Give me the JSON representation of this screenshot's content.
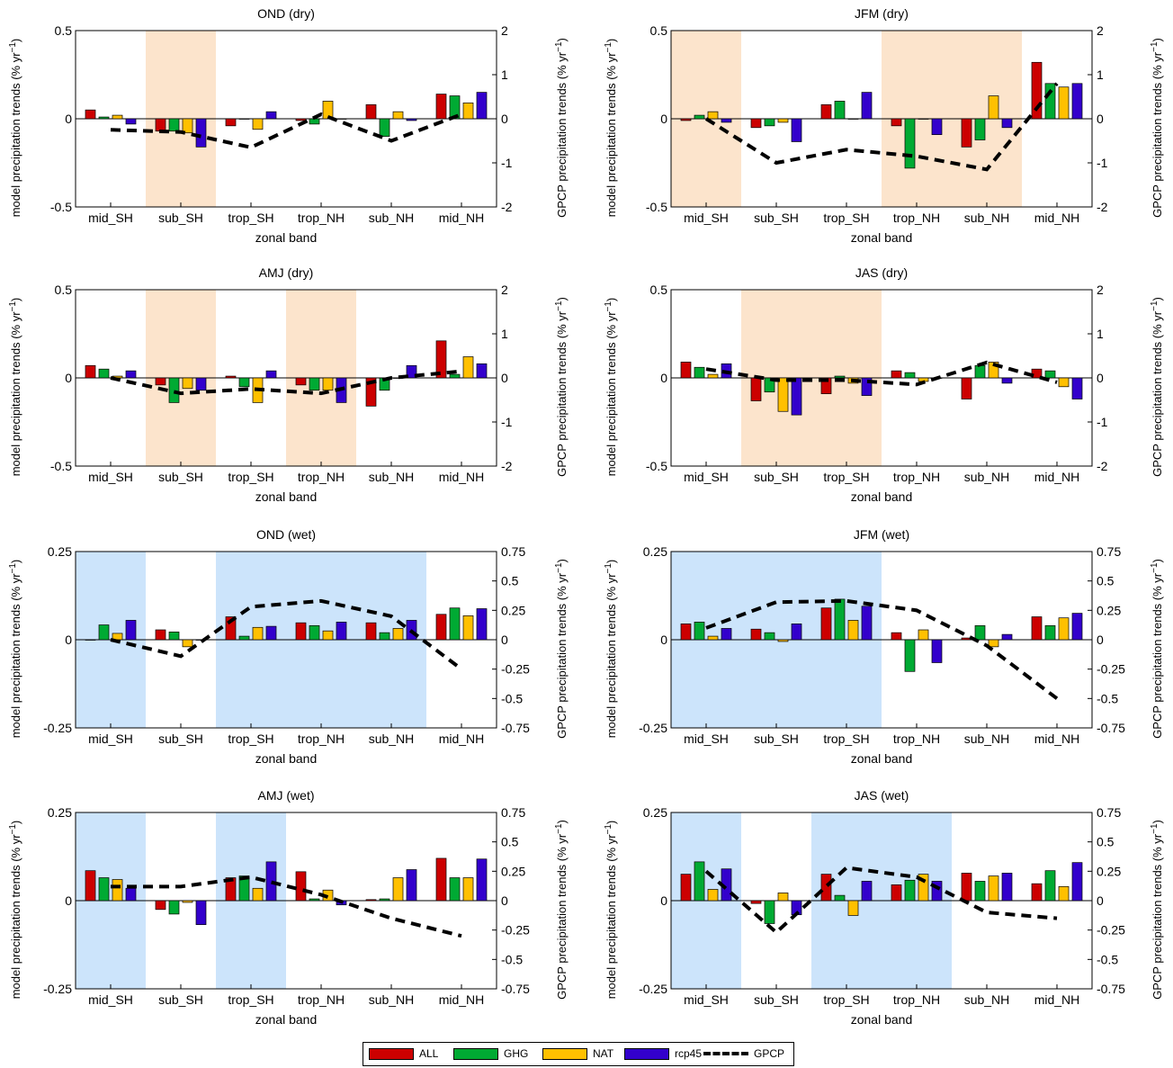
{
  "colors": {
    "ALL": "#cc0000",
    "GHG": "#00aa33",
    "NAT": "#ffc000",
    "rcp45": "#3300cc",
    "dry_shade": "#fce4cc",
    "wet_shade": "#cce4fb"
  },
  "legend": [
    {
      "label": "ALL",
      "color": "#cc0000",
      "kind": "bar"
    },
    {
      "label": "GHG",
      "color": "#00aa33",
      "kind": "bar"
    },
    {
      "label": "NAT",
      "color": "#ffc000",
      "kind": "bar"
    },
    {
      "label": "rcp45",
      "color": "#3300cc",
      "kind": "bar"
    },
    {
      "label": "GPCP",
      "color": "#000000",
      "kind": "dashed-line"
    }
  ],
  "chart_data": [
    {
      "type": "bar",
      "title": "OND (dry)",
      "categories": [
        "mid_SH",
        "sub_SH",
        "trop_SH",
        "trop_NH",
        "sub_NH",
        "mid_NH"
      ],
      "xlabel": "zonal band",
      "ylabel": "model precipitation trends (% yr⁻¹)",
      "y2label": "GPCP precipitation trends (% yr⁻¹)",
      "ylim": [
        -0.5,
        0.5
      ],
      "yticks": [
        "-0.5",
        "0",
        "0.5"
      ],
      "y2lim": [
        -2,
        2
      ],
      "y2ticks": [
        "-2",
        "-1",
        "0",
        "1",
        "2"
      ],
      "shaded_bands": [
        1
      ],
      "shade_type": "dry",
      "series": [
        {
          "name": "ALL",
          "values": [
            0.05,
            -0.07,
            -0.04,
            -0.01,
            0.08,
            0.14
          ]
        },
        {
          "name": "GHG",
          "values": [
            0.01,
            -0.07,
            0.0,
            -0.03,
            -0.1,
            0.13
          ]
        },
        {
          "name": "NAT",
          "values": [
            0.02,
            -0.08,
            -0.06,
            0.1,
            0.04,
            0.09
          ]
        },
        {
          "name": "rcp45",
          "values": [
            -0.03,
            -0.16,
            0.04,
            0.0,
            -0.01,
            0.15
          ]
        },
        {
          "name": "GPCP",
          "values": [
            -0.25,
            -0.3,
            -0.65,
            0.1,
            -0.5,
            0.1
          ],
          "axis": "right"
        }
      ]
    },
    {
      "type": "bar",
      "title": "JFM (dry)",
      "categories": [
        "mid_SH",
        "sub_SH",
        "trop_SH",
        "trop_NH",
        "sub_NH",
        "mid_NH"
      ],
      "xlabel": "zonal band",
      "ylabel": "model precipitation trends (% yr⁻¹)",
      "y2label": "GPCP precipitation trends (% yr⁻¹)",
      "ylim": [
        -0.5,
        0.5
      ],
      "yticks": [
        "-0.5",
        "0",
        "0.5"
      ],
      "y2lim": [
        -2,
        2
      ],
      "y2ticks": [
        "-2",
        "-1",
        "0",
        "1",
        "2"
      ],
      "shaded_bands": [
        0,
        3,
        4
      ],
      "shade_type": "dry",
      "series": [
        {
          "name": "ALL",
          "values": [
            -0.01,
            -0.05,
            0.08,
            -0.04,
            -0.16,
            0.32
          ]
        },
        {
          "name": "GHG",
          "values": [
            0.02,
            -0.04,
            0.1,
            -0.28,
            -0.12,
            0.2
          ]
        },
        {
          "name": "NAT",
          "values": [
            0.04,
            -0.02,
            0.0,
            0.0,
            0.13,
            0.18
          ]
        },
        {
          "name": "rcp45",
          "values": [
            -0.02,
            -0.13,
            0.15,
            -0.09,
            -0.05,
            0.2
          ]
        },
        {
          "name": "GPCP",
          "values": [
            0.0,
            -1.0,
            -0.7,
            -0.85,
            -1.15,
            0.8
          ],
          "axis": "right"
        }
      ]
    },
    {
      "type": "bar",
      "title": "AMJ (dry)",
      "categories": [
        "mid_SH",
        "sub_SH",
        "trop_SH",
        "trop_NH",
        "sub_NH",
        "mid_NH"
      ],
      "xlabel": "zonal band",
      "ylabel": "model precipitation trends (% yr⁻¹)",
      "y2label": "GPCP precipitation trends (% yr⁻¹)",
      "ylim": [
        -0.5,
        0.5
      ],
      "yticks": [
        "-0.5",
        "0",
        "0.5"
      ],
      "y2lim": [
        -2,
        2
      ],
      "y2ticks": [
        "-2",
        "-1",
        "0",
        "1",
        "2"
      ],
      "shaded_bands": [
        1,
        3
      ],
      "shade_type": "dry",
      "series": [
        {
          "name": "ALL",
          "values": [
            0.07,
            -0.04,
            0.01,
            -0.04,
            -0.16,
            0.21
          ]
        },
        {
          "name": "GHG",
          "values": [
            0.05,
            -0.14,
            -0.05,
            -0.07,
            -0.07,
            0.02
          ]
        },
        {
          "name": "NAT",
          "values": [
            0.01,
            -0.06,
            -0.14,
            -0.07,
            0.0,
            0.12
          ]
        },
        {
          "name": "rcp45",
          "values": [
            0.04,
            -0.07,
            0.04,
            -0.14,
            0.07,
            0.08
          ]
        },
        {
          "name": "GPCP",
          "values": [
            0.0,
            -0.35,
            -0.25,
            -0.35,
            0.0,
            0.15
          ],
          "axis": "right"
        }
      ]
    },
    {
      "type": "bar",
      "title": "JAS (dry)",
      "categories": [
        "mid_SH",
        "sub_SH",
        "trop_SH",
        "trop_NH",
        "sub_NH",
        "mid_NH"
      ],
      "xlabel": "zonal band",
      "ylabel": "model precipitation trends (% yr⁻¹)",
      "y2label": "GPCP precipitation trends (% yr⁻¹)",
      "ylim": [
        -0.5,
        0.5
      ],
      "yticks": [
        "-0.5",
        "0",
        "0.5"
      ],
      "y2lim": [
        -2,
        2
      ],
      "y2ticks": [
        "-2",
        "-1",
        "0",
        "1",
        "2"
      ],
      "shaded_bands": [
        1,
        2
      ],
      "shade_type": "dry",
      "series": [
        {
          "name": "ALL",
          "values": [
            0.09,
            -0.13,
            -0.09,
            0.04,
            -0.12,
            0.05
          ]
        },
        {
          "name": "GHG",
          "values": [
            0.06,
            -0.08,
            0.01,
            0.03,
            0.07,
            0.04
          ]
        },
        {
          "name": "NAT",
          "values": [
            0.02,
            -0.19,
            -0.03,
            -0.02,
            0.09,
            -0.05
          ]
        },
        {
          "name": "rcp45",
          "values": [
            0.08,
            -0.21,
            -0.1,
            0.0,
            -0.03,
            -0.12
          ]
        },
        {
          "name": "GPCP",
          "values": [
            0.2,
            -0.05,
            -0.05,
            -0.15,
            0.35,
            -0.1
          ],
          "axis": "right"
        }
      ]
    },
    {
      "type": "bar",
      "title": "OND (wet)",
      "categories": [
        "mid_SH",
        "sub_SH",
        "trop_SH",
        "trop_NH",
        "sub_NH",
        "mid_NH"
      ],
      "xlabel": "zonal band",
      "ylabel": "model precipitation trends (% yr⁻¹)",
      "y2label": "GPCP precipitation trends (% yr⁻¹)",
      "ylim": [
        -0.25,
        0.25
      ],
      "yticks": [
        "-0.25",
        "0",
        "0.25"
      ],
      "y2lim": [
        -0.75,
        0.75
      ],
      "y2ticks": [
        "-0.75",
        "-0.5",
        "-0.25",
        "0",
        "0.25",
        "0.5",
        "0.75"
      ],
      "shaded_bands": [
        0,
        2,
        3,
        4
      ],
      "shade_type": "wet",
      "series": [
        {
          "name": "ALL",
          "values": [
            0.0,
            0.028,
            0.065,
            0.048,
            0.048,
            0.072
          ]
        },
        {
          "name": "GHG",
          "values": [
            0.042,
            0.022,
            0.01,
            0.04,
            0.02,
            0.09
          ]
        },
        {
          "name": "NAT",
          "values": [
            0.018,
            -0.02,
            0.035,
            0.025,
            0.032,
            0.068
          ]
        },
        {
          "name": "rcp45",
          "values": [
            0.055,
            0.0,
            0.038,
            0.05,
            0.055,
            0.088
          ]
        },
        {
          "name": "GPCP",
          "values": [
            0.0,
            -0.14,
            0.28,
            0.33,
            0.2,
            -0.25
          ],
          "axis": "right"
        }
      ]
    },
    {
      "type": "bar",
      "title": "JFM (wet)",
      "categories": [
        "mid_SH",
        "sub_SH",
        "trop_SH",
        "trop_NH",
        "sub_NH",
        "mid_NH"
      ],
      "xlabel": "zonal band",
      "ylabel": "model precipitation trends (% yr⁻¹)",
      "y2label": "GPCP precipitation trends (% yr⁻¹)",
      "ylim": [
        -0.25,
        0.25
      ],
      "yticks": [
        "-0.25",
        "0",
        "0.25"
      ],
      "y2lim": [
        -0.75,
        0.75
      ],
      "y2ticks": [
        "-0.75",
        "-0.5",
        "-0.25",
        "0",
        "0.25",
        "0.5",
        "0.75"
      ],
      "shaded_bands": [
        0,
        1,
        2
      ],
      "shade_type": "wet",
      "series": [
        {
          "name": "ALL",
          "values": [
            0.045,
            0.03,
            0.09,
            0.02,
            0.005,
            0.065
          ]
        },
        {
          "name": "GHG",
          "values": [
            0.05,
            0.02,
            0.115,
            -0.09,
            0.04,
            0.04
          ]
        },
        {
          "name": "NAT",
          "values": [
            0.01,
            -0.005,
            0.055,
            0.028,
            -0.02,
            0.062
          ]
        },
        {
          "name": "rcp45",
          "values": [
            0.032,
            0.045,
            0.095,
            -0.065,
            0.015,
            0.075
          ]
        },
        {
          "name": "GPCP",
          "values": [
            0.1,
            0.32,
            0.33,
            0.25,
            -0.05,
            -0.5
          ],
          "axis": "right"
        }
      ]
    },
    {
      "type": "bar",
      "title": "AMJ (wet)",
      "categories": [
        "mid_SH",
        "sub_SH",
        "trop_SH",
        "trop_NH",
        "sub_NH",
        "mid_NH"
      ],
      "xlabel": "zonal band",
      "ylabel": "model precipitation trends (% yr⁻¹)",
      "y2label": "GPCP precipitation trends (% yr⁻¹)",
      "ylim": [
        -0.25,
        0.25
      ],
      "yticks": [
        "-0.25",
        "0",
        "0.25"
      ],
      "y2lim": [
        -0.75,
        0.75
      ],
      "y2ticks": [
        "-0.75",
        "-0.5",
        "-0.25",
        "0",
        "0.25",
        "0.5",
        "0.75"
      ],
      "shaded_bands": [
        0,
        2
      ],
      "shade_type": "wet",
      "series": [
        {
          "name": "ALL",
          "values": [
            0.085,
            -0.025,
            0.065,
            0.082,
            0.003,
            0.12
          ]
        },
        {
          "name": "GHG",
          "values": [
            0.065,
            -0.038,
            0.07,
            0.005,
            0.005,
            0.065
          ]
        },
        {
          "name": "NAT",
          "values": [
            0.06,
            -0.005,
            0.035,
            0.03,
            0.065,
            0.065
          ]
        },
        {
          "name": "rcp45",
          "values": [
            0.035,
            -0.068,
            0.11,
            -0.012,
            0.088,
            0.118
          ]
        },
        {
          "name": "GPCP",
          "values": [
            0.12,
            0.12,
            0.2,
            0.05,
            -0.15,
            -0.3
          ],
          "axis": "right"
        }
      ]
    },
    {
      "type": "bar",
      "title": "JAS (wet)",
      "categories": [
        "mid_SH",
        "sub_SH",
        "trop_SH",
        "trop_NH",
        "sub_NH",
        "mid_NH"
      ],
      "xlabel": "zonal band",
      "ylabel": "model precipitation trends (% yr⁻¹)",
      "y2label": "GPCP precipitation trends (% yr⁻¹)",
      "ylim": [
        -0.25,
        0.25
      ],
      "yticks": [
        "-0.25",
        "0",
        "0.25"
      ],
      "y2lim": [
        -0.75,
        0.75
      ],
      "y2ticks": [
        "-0.75",
        "-0.5",
        "-0.25",
        "0",
        "0.25",
        "0.5",
        "0.75"
      ],
      "shaded_bands": [
        0,
        2,
        3
      ],
      "shade_type": "wet",
      "series": [
        {
          "name": "ALL",
          "values": [
            0.075,
            -0.008,
            0.075,
            0.045,
            0.078,
            0.048
          ]
        },
        {
          "name": "GHG",
          "values": [
            0.11,
            -0.065,
            0.015,
            0.058,
            0.055,
            0.085
          ]
        },
        {
          "name": "NAT",
          "values": [
            0.032,
            0.022,
            -0.042,
            0.075,
            0.07,
            0.04
          ]
        },
        {
          "name": "rcp45",
          "values": [
            0.09,
            -0.04,
            0.055,
            0.055,
            0.078,
            0.108
          ]
        },
        {
          "name": "GPCP",
          "values": [
            0.25,
            -0.27,
            0.28,
            0.2,
            -0.1,
            -0.15
          ],
          "axis": "right"
        }
      ]
    }
  ]
}
